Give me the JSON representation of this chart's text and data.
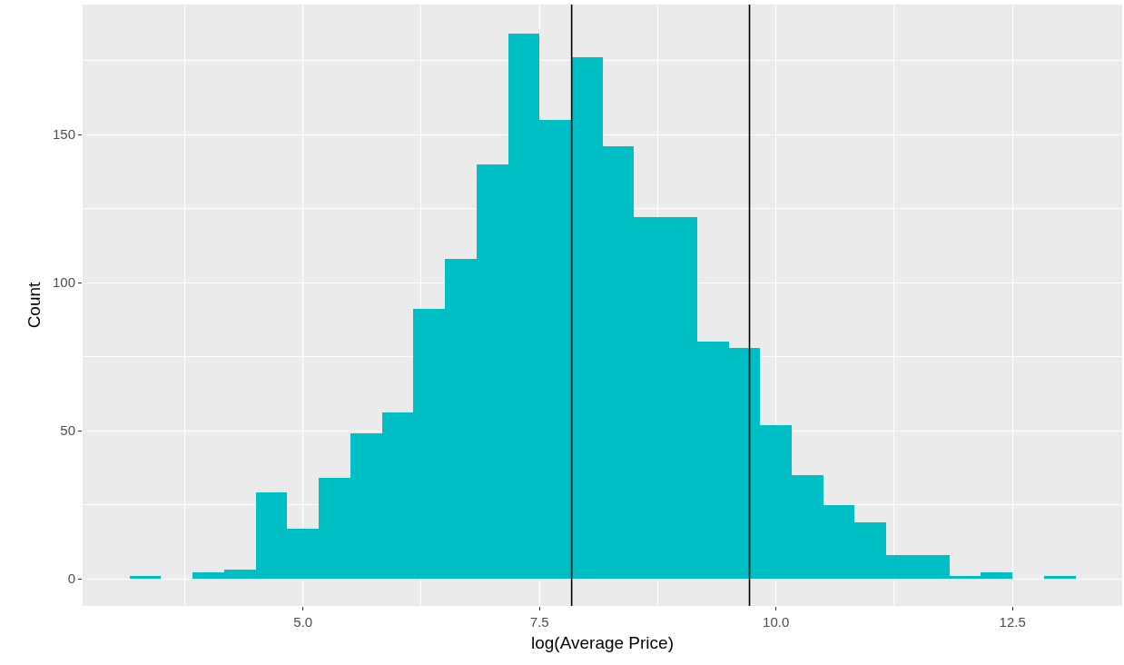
{
  "chart_data": {
    "type": "histogram",
    "xlabel": "log(Average Price)",
    "ylabel": "Count",
    "bins": [
      3.167,
      3.5,
      3.833,
      4.167,
      4.5,
      4.833,
      5.167,
      5.5,
      5.833,
      6.167,
      6.5,
      6.833,
      7.167,
      7.5,
      7.833,
      8.167,
      8.5,
      8.833,
      9.167,
      9.5,
      9.833,
      10.167,
      10.5,
      10.833,
      11.167,
      11.5,
      11.833,
      12.167,
      12.5,
      12.833,
      13.167
    ],
    "values": [
      1,
      0,
      2,
      3,
      29,
      17,
      34,
      49,
      56,
      91,
      108,
      140,
      184,
      155,
      176,
      146,
      122,
      122,
      80,
      78,
      52,
      35,
      25,
      19,
      8,
      8,
      1,
      2,
      0,
      1
    ],
    "color": "#00bfc4",
    "xlim": [
      2.67,
      13.66
    ],
    "xticks": [
      {
        "value": 3.75,
        "label": null
      },
      {
        "value": 5,
        "label": "5.0"
      },
      {
        "value": 6.25,
        "label": null
      },
      7.5,
      {
        "value": 8.75,
        "label": null
      },
      {
        "value": 10,
        "label": "10.0"
      },
      {
        "value": 11.25,
        "label": null
      },
      12.5
    ],
    "ylim": [
      -9.2,
      193.9
    ],
    "yticks": [
      0,
      {
        "value": 25,
        "label": null
      },
      50,
      {
        "value": 75,
        "label": null
      },
      100,
      {
        "value": 125,
        "label": null
      },
      150,
      {
        "value": 175,
        "label": null
      }
    ],
    "ref_lines": [
      {
        "axis": "x",
        "value": 7.84,
        "color": "#000000"
      },
      {
        "axis": "x",
        "value": 9.72,
        "color": "#000000"
      }
    ],
    "grid": true
  }
}
